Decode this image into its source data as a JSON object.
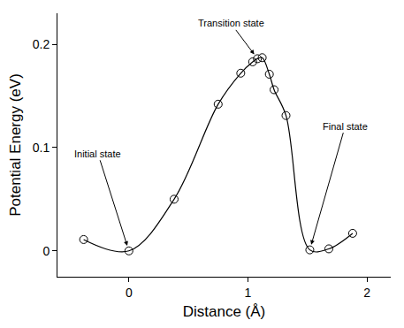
{
  "chart_data": {
    "type": "line",
    "x_label": "Distance (Å)",
    "y_label": "Potential Energy (eV)",
    "x": [
      -0.38,
      0,
      0.38,
      0.75,
      0.94,
      1.04,
      1.08,
      1.12,
      1.18,
      1.22,
      1.32,
      1.52,
      1.68,
      1.88
    ],
    "values": [
      0.011,
      0,
      0.05,
      0.142,
      0.172,
      0.183,
      0.186,
      0.187,
      0.171,
      0.156,
      0.131,
      0.001,
      0.002,
      0.017
    ],
    "color": "#000000",
    "marker": "circle-open",
    "line_style": "solid",
    "xlim": [
      -0.6,
      2.2
    ],
    "xticks": [
      0,
      1,
      2
    ],
    "ylim": [
      -0.025,
      0.23
    ],
    "yticks": [
      0,
      0.1,
      0.2
    ],
    "grid": false,
    "annotations": [
      {
        "text": "Initial state",
        "x": 0,
        "y": 0
      },
      {
        "text": "Transition state",
        "x": 1.08,
        "y": 0.186
      },
      {
        "text": "Final state",
        "x": 1.52,
        "y": 0.001
      }
    ]
  }
}
